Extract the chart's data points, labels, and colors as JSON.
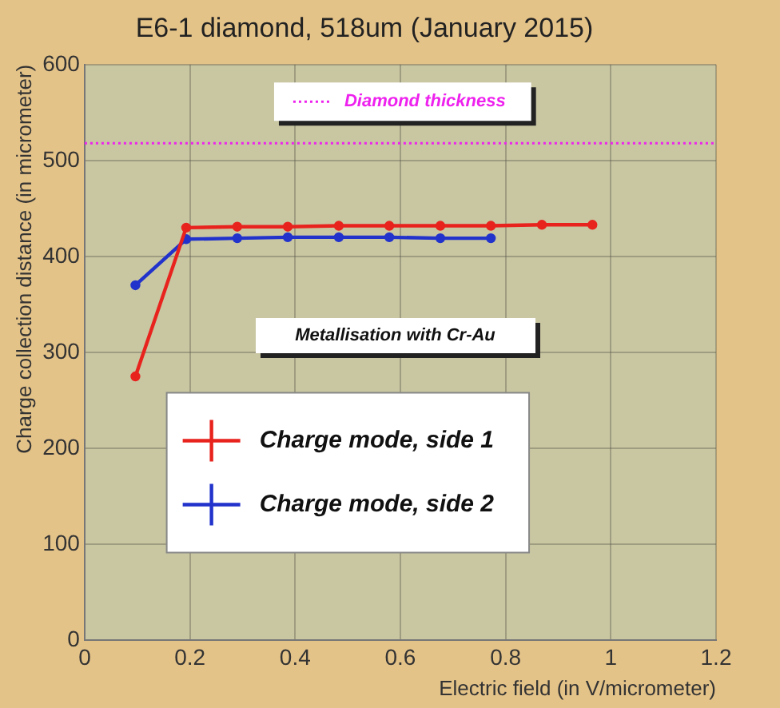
{
  "chart_data": {
    "type": "line",
    "title": "E6-1 diamond, 518um (January 2015)",
    "xlabel": "Electric field (in V/micrometer)",
    "ylabel": "Charge collection distance (in micrometer)",
    "xlim": [
      0,
      1.2
    ],
    "xticks": [
      0,
      0.2,
      0.4,
      0.6,
      0.8,
      1,
      1.2
    ],
    "ylim": [
      0,
      600
    ],
    "yticks": [
      0,
      100,
      200,
      300,
      400,
      500,
      600
    ],
    "grid": true,
    "legend": "left",
    "marker": "circle",
    "line_style": "solid",
    "series": [
      {
        "name": "Charge mode, side 1",
        "color": "#e8231e",
        "x": [
          0.0965,
          0.193,
          0.29,
          0.386,
          0.483,
          0.579,
          0.676,
          0.772,
          0.869,
          0.965
        ],
        "values": [
          275,
          430,
          431,
          431,
          432,
          432,
          432,
          432,
          433,
          433
        ]
      },
      {
        "name": "Charge mode, side 2",
        "color": "#2233cc",
        "x": [
          0.0965,
          0.193,
          0.29,
          0.386,
          0.483,
          0.579,
          0.676,
          0.772
        ],
        "values": [
          370,
          418,
          419,
          420,
          420,
          420,
          419,
          419
        ]
      }
    ],
    "ref_lines": [
      {
        "axis": "y",
        "value": 518,
        "label": "Diamond thickness",
        "color": "#ee22ee",
        "line_style": "dotted"
      }
    ],
    "annotations": [
      "Metallisation with Cr-Au"
    ]
  }
}
